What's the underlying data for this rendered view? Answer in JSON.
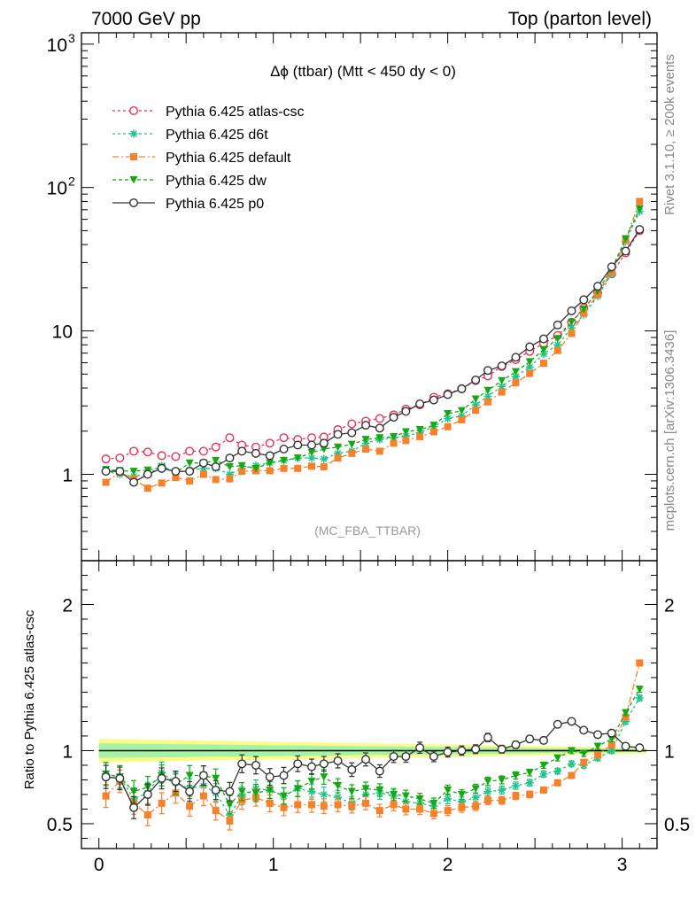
{
  "header": {
    "left": "7000 GeV pp",
    "right": "Top (parton level)"
  },
  "side": {
    "rivet": "Rivet 3.1.10, ≥ 200k events",
    "site": "mcplots.cern.ch [arXiv:1306.3436]"
  },
  "chart_data": [
    {
      "type": "line",
      "title": "Δϕ (ttbar) (Mtt < 450 dy < 0)",
      "watermark": "(MC_FBA_TTBAR)",
      "yscale": "log",
      "xlim": [
        -0.1,
        3.2
      ],
      "ylim": [
        0.25,
        1200
      ],
      "yticks": [
        1,
        10,
        100,
        1000
      ],
      "ytick_labels": [
        "1",
        "10",
        "10^2",
        "10^3"
      ],
      "x": [
        0.04,
        0.12,
        0.2,
        0.28,
        0.36,
        0.44,
        0.52,
        0.6,
        0.67,
        0.75,
        0.82,
        0.9,
        0.98,
        1.06,
        1.14,
        1.22,
        1.29,
        1.37,
        1.45,
        1.53,
        1.61,
        1.69,
        1.76,
        1.84,
        1.92,
        2.0,
        2.08,
        2.16,
        2.23,
        2.31,
        2.39,
        2.47,
        2.55,
        2.63,
        2.71,
        2.78,
        2.86,
        2.94,
        3.02,
        3.1
      ],
      "series": [
        {
          "name": "Pythia 6.425 atlas-csc",
          "color": "#e8315a",
          "marker": "open-circle",
          "dash": "3,3",
          "values": [
            1.28,
            1.3,
            1.45,
            1.43,
            1.35,
            1.33,
            1.45,
            1.45,
            1.55,
            1.8,
            1.6,
            1.55,
            1.65,
            1.8,
            1.75,
            1.8,
            1.82,
            2.05,
            2.25,
            2.35,
            2.45,
            2.6,
            2.85,
            3.05,
            3.45,
            3.65,
            3.95,
            4.5,
            4.85,
            5.65,
            6.3,
            7.2,
            8.2,
            9.3,
            11.5,
            14.5,
            18.5,
            25.0,
            35.0,
            50.0
          ]
        },
        {
          "name": "Pythia 6.425 d6t",
          "color": "#1dc48a",
          "marker": "star",
          "dash": "3,3",
          "values": [
            1.05,
            1.0,
            0.97,
            1.0,
            1.15,
            1.03,
            1.07,
            1.1,
            1.1,
            1.0,
            1.1,
            1.15,
            1.2,
            1.25,
            1.3,
            1.3,
            1.28,
            1.4,
            1.45,
            1.65,
            1.75,
            1.8,
            1.85,
            1.95,
            2.15,
            2.45,
            2.55,
            3.05,
            3.5,
            4.1,
            4.8,
            5.6,
            6.9,
            8.0,
            10.5,
            13.0,
            17.5,
            25.0,
            42.0,
            68.0
          ]
        },
        {
          "name": "Pythia 6.425 default",
          "color": "#f7812b",
          "marker": "filled-square",
          "dash": "7,3,2,3",
          "values": [
            0.88,
            1.03,
            0.93,
            0.8,
            0.87,
            0.95,
            0.9,
            1.0,
            0.92,
            0.93,
            1.05,
            1.06,
            1.06,
            1.1,
            1.1,
            1.14,
            1.13,
            1.3,
            1.4,
            1.5,
            1.45,
            1.65,
            1.72,
            1.83,
            1.98,
            2.15,
            2.4,
            2.8,
            3.2,
            3.75,
            4.35,
            5.05,
            5.95,
            7.3,
            9.6,
            13.3,
            18.0,
            26.0,
            43.0,
            80.0
          ]
        },
        {
          "name": "Pythia 6.425 dw",
          "color": "#14a814",
          "marker": "filled-triangle-down",
          "dash": "4,3",
          "values": [
            1.08,
            1.06,
            1.05,
            1.07,
            1.12,
            1.03,
            1.2,
            1.2,
            1.25,
            1.13,
            1.15,
            1.1,
            1.2,
            1.25,
            1.3,
            1.42,
            1.5,
            1.55,
            1.62,
            1.75,
            1.8,
            1.83,
            1.98,
            2.05,
            2.2,
            2.65,
            2.78,
            3.35,
            3.85,
            4.5,
            5.2,
            6.1,
            7.4,
            8.85,
            11.5,
            14.2,
            19.0,
            27.0,
            44.0,
            71.0
          ]
        },
        {
          "name": "Pythia 6.425 p0",
          "color": "#333333",
          "marker": "open-circle",
          "dash": "",
          "values": [
            1.05,
            1.05,
            0.88,
            1.0,
            1.1,
            1.05,
            1.05,
            1.2,
            1.13,
            1.3,
            1.45,
            1.4,
            1.35,
            1.5,
            1.6,
            1.6,
            1.65,
            1.9,
            1.95,
            2.2,
            2.1,
            2.5,
            2.75,
            3.1,
            3.3,
            3.6,
            3.95,
            4.55,
            5.3,
            5.7,
            6.55,
            7.75,
            8.8,
            11.0,
            13.8,
            16.5,
            20.5,
            28.0,
            36.0,
            51.0
          ]
        }
      ]
    },
    {
      "type": "line",
      "ylabel": "Ratio to Pythia 6.425 atlas-csc",
      "xlim": [
        -0.1,
        3.2
      ],
      "ylim": [
        0.33,
        2.3
      ],
      "xticks": [
        0,
        1,
        2,
        3
      ],
      "yticks": [
        0.5,
        1,
        2
      ],
      "band": {
        "inner_color": "#a6f2a6",
        "outer_color": "#fbfb88",
        "inner_halfwidth_start": 0.05,
        "inner_halfwidth_end": 0.01,
        "outer_halfwidth_start": 0.08,
        "outer_halfwidth_end": 0.02
      },
      "series": [
        {
          "name": "Pythia 6.425 d6t",
          "values": [
            0.84,
            0.82,
            0.67,
            0.71,
            0.85,
            0.78,
            0.74,
            0.76,
            0.71,
            0.56,
            0.69,
            0.74,
            0.73,
            0.69,
            0.74,
            0.72,
            0.7,
            0.68,
            0.64,
            0.7,
            0.71,
            0.69,
            0.65,
            0.64,
            0.62,
            0.67,
            0.65,
            0.68,
            0.72,
            0.73,
            0.76,
            0.78,
            0.84,
            0.86,
            0.91,
            0.9,
            0.95,
            1.0,
            1.2,
            1.36
          ]
        },
        {
          "name": "Pythia 6.425 default",
          "values": [
            0.69,
            0.79,
            0.64,
            0.56,
            0.64,
            0.71,
            0.62,
            0.69,
            0.59,
            0.52,
            0.66,
            0.68,
            0.64,
            0.61,
            0.63,
            0.63,
            0.62,
            0.63,
            0.62,
            0.64,
            0.59,
            0.63,
            0.6,
            0.6,
            0.57,
            0.59,
            0.61,
            0.62,
            0.66,
            0.66,
            0.69,
            0.7,
            0.73,
            0.78,
            0.83,
            0.92,
            0.97,
            1.04,
            1.23,
            1.6
          ]
        },
        {
          "name": "Pythia 6.425 dw",
          "values": [
            0.84,
            0.82,
            0.72,
            0.75,
            0.83,
            0.77,
            0.83,
            0.83,
            0.81,
            0.63,
            0.72,
            0.71,
            0.73,
            0.69,
            0.74,
            0.79,
            0.82,
            0.76,
            0.72,
            0.74,
            0.73,
            0.7,
            0.69,
            0.67,
            0.64,
            0.73,
            0.7,
            0.74,
            0.79,
            0.8,
            0.83,
            0.85,
            0.9,
            0.95,
            1.0,
            0.98,
            1.03,
            1.08,
            1.26,
            1.42
          ]
        },
        {
          "name": "Pythia 6.425 p0",
          "values": [
            0.82,
            0.81,
            0.61,
            0.7,
            0.81,
            0.79,
            0.72,
            0.83,
            0.73,
            0.72,
            0.91,
            0.9,
            0.82,
            0.83,
            0.91,
            0.89,
            0.91,
            0.93,
            0.87,
            0.94,
            0.86,
            0.96,
            0.96,
            1.02,
            0.96,
            0.99,
            1.0,
            1.01,
            1.09,
            1.01,
            1.04,
            1.08,
            1.07,
            1.18,
            1.2,
            1.14,
            1.11,
            1.12,
            1.03,
            1.02
          ]
        }
      ]
    }
  ]
}
